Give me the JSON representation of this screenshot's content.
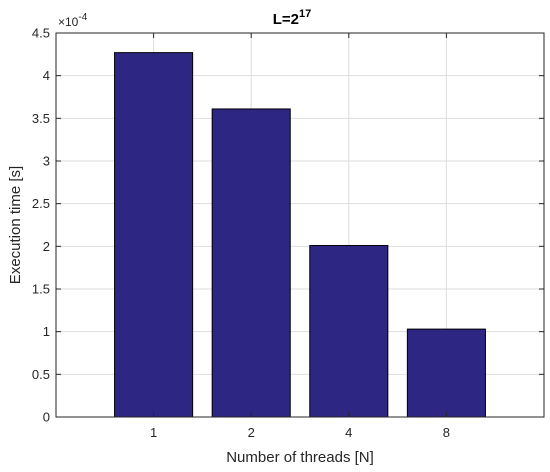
{
  "chart_data": {
    "type": "bar",
    "title": "L=2",
    "title_superscript": "17",
    "xlabel": "Number of threads [N]",
    "ylabel": "Execution time [s]",
    "y_exponent_base": "×10",
    "y_exponent_power": "-4",
    "categories": [
      "1",
      "2",
      "4",
      "8"
    ],
    "values": [
      0.000427,
      0.000361,
      0.000201,
      0.000103
    ],
    "ylim": [
      0,
      0.00045
    ],
    "yticks": [
      0,
      5e-05,
      0.0001,
      0.00015,
      0.0002,
      0.00025,
      0.0003,
      0.00035,
      0.0004,
      0.00045
    ],
    "ytick_labels": [
      "0",
      "0.5",
      "1",
      "1.5",
      "2",
      "2.5",
      "3",
      "3.5",
      "4",
      "4.5"
    ],
    "grid": true,
    "bar_color": "#2e2683",
    "bar_edge_color": "#000000"
  }
}
